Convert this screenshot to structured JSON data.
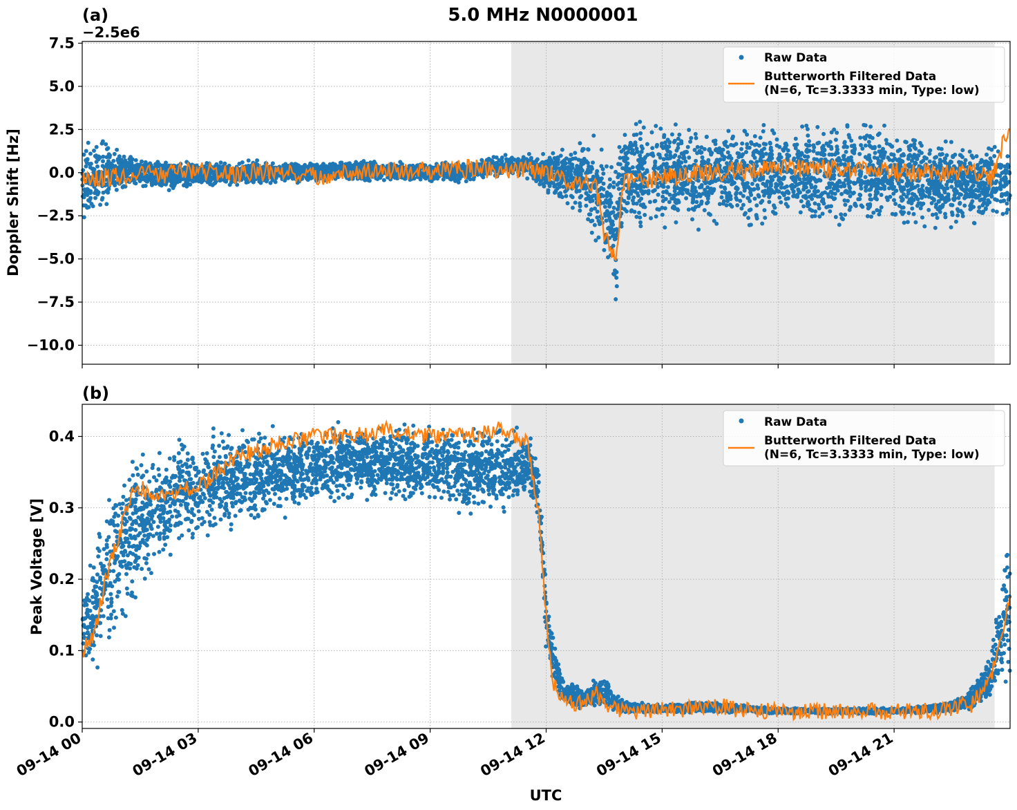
{
  "figure": {
    "title": "5.0 MHz N0000001",
    "xlabel": "UTC",
    "legend": {
      "raw_label": "Raw Data",
      "filtered_label_line1": "Butterworth Filtered Data",
      "filtered_label_line2": "(N=6, Tc=3.3333 min, Type: low)"
    },
    "colors": {
      "raw": "#1f77b4",
      "filtered": "#ff7f0e",
      "shade": "#e8e8e8",
      "grid": "#b0b0b0"
    },
    "x_tick_labels": [
      "09-14 00",
      "09-14 03",
      "09-14 06",
      "09-14 09",
      "09-14 12",
      "09-14 15",
      "09-14 18",
      "09-14 21"
    ]
  },
  "chart_data": [
    {
      "type": "scatter",
      "panel_label": "(a)",
      "ylabel": "Doppler Shift [Hz]",
      "offset_text": "−2.5e6",
      "x_unit": "hours since 09-14 00 UTC",
      "xlim": [
        0,
        24
      ],
      "ylim": [
        -11.1,
        7.6
      ],
      "yticks": [
        7.5,
        5.0,
        2.5,
        0.0,
        -2.5,
        -5.0,
        -7.5,
        -10.0
      ],
      "ytick_labels": [
        "7.5",
        "5.0",
        "2.5",
        "0.0",
        "−2.5",
        "−5.0",
        "−7.5",
        "−10.0"
      ],
      "grid": true,
      "legend_position": "upper right",
      "shaded_region": [
        11.1,
        23.6
      ],
      "series": [
        {
          "name": "Raw Data",
          "kind": "band",
          "x": [
            0,
            0.5,
            1,
            1.5,
            2,
            3,
            4,
            5,
            6,
            7,
            8,
            9,
            10,
            11,
            11.5,
            12,
            12.5,
            13,
            13.3,
            13.6,
            13.8,
            14,
            14.3,
            15,
            16,
            17,
            18,
            19,
            20,
            21,
            22,
            23,
            24
          ],
          "y_high": [
            2.6,
            2.0,
            1.5,
            0.9,
            0.9,
            0.8,
            0.8,
            0.8,
            0.8,
            0.8,
            0.7,
            0.7,
            0.8,
            1.2,
            1.2,
            1.4,
            2.0,
            2.5,
            2.5,
            2.0,
            1.5,
            3.0,
            3.5,
            3.2,
            3.3,
            3.3,
            3.3,
            3.4,
            3.4,
            3.3,
            2.6,
            2.2,
            1.6
          ],
          "y_low": [
            -3.2,
            -2.4,
            -1.4,
            -0.9,
            -1.2,
            -1.0,
            -0.8,
            -0.7,
            -0.7,
            -0.6,
            -0.5,
            -0.6,
            -0.6,
            -0.3,
            -0.5,
            -1.3,
            -2.5,
            -3.2,
            -4.8,
            -6.5,
            -8.5,
            -3.0,
            -4.0,
            -3.5,
            -3.7,
            -3.7,
            -3.6,
            -3.7,
            -3.6,
            -3.7,
            -3.7,
            -3.4,
            -3.0
          ]
        },
        {
          "name": "Butterworth Filtered Data (N=6, Tc=3.3333 min, Type: low)",
          "kind": "line",
          "x": [
            0,
            1,
            2,
            3,
            4,
            5,
            6,
            7,
            8,
            9,
            10,
            11,
            12,
            12.5,
            13,
            13.3,
            13.5,
            13.7,
            13.8,
            14,
            14.5,
            15,
            16,
            17,
            18,
            19,
            20,
            21,
            22,
            23,
            23.5,
            24
          ],
          "y": [
            -0.3,
            -0.2,
            -0.1,
            0.1,
            -0.1,
            0.1,
            -0.2,
            0.0,
            0.1,
            0.1,
            0.2,
            0.2,
            0.1,
            -0.4,
            -0.6,
            -0.9,
            -3.5,
            -4.5,
            -5.5,
            -0.5,
            -0.6,
            -0.3,
            0.0,
            0.1,
            0.3,
            0.2,
            0.3,
            0.0,
            0.0,
            0.0,
            -0.4,
            2.8
          ],
          "noise": 0.55
        }
      ]
    },
    {
      "type": "scatter",
      "panel_label": "(b)",
      "ylabel": "Peak Voltage [V]",
      "x_unit": "hours since 09-14 00 UTC",
      "xlim": [
        0,
        24
      ],
      "ylim": [
        -0.009,
        0.445
      ],
      "yticks": [
        0.4,
        0.3,
        0.2,
        0.1,
        0.0
      ],
      "ytick_labels": [
        "0.4",
        "0.3",
        "0.2",
        "0.1",
        "0.0"
      ],
      "grid": true,
      "legend_position": "upper right",
      "shaded_region": [
        11.1,
        23.6
      ],
      "series": [
        {
          "name": "Raw Data",
          "kind": "band",
          "x": [
            0,
            0.3,
            0.6,
            1,
            1.5,
            2,
            3,
            4,
            5,
            6,
            7,
            8,
            9,
            10,
            11,
            11.5,
            11.8,
            12,
            12.2,
            12.5,
            13,
            13.5,
            14,
            15,
            16,
            17,
            18,
            19,
            20,
            21,
            22,
            22.5,
            23,
            23.5,
            24
          ],
          "y_high": [
            0.19,
            0.25,
            0.32,
            0.38,
            0.4,
            0.4,
            0.42,
            0.42,
            0.425,
            0.425,
            0.425,
            0.425,
            0.425,
            0.425,
            0.42,
            0.42,
            0.38,
            0.2,
            0.12,
            0.06,
            0.05,
            0.07,
            0.03,
            0.025,
            0.03,
            0.025,
            0.02,
            0.02,
            0.02,
            0.02,
            0.025,
            0.03,
            0.05,
            0.1,
            0.33
          ],
          "y_low": [
            0.06,
            0.06,
            0.08,
            0.12,
            0.17,
            0.2,
            0.24,
            0.26,
            0.28,
            0.29,
            0.3,
            0.3,
            0.29,
            0.28,
            0.28,
            0.3,
            0.28,
            0.08,
            0.04,
            0.02,
            0.015,
            0.015,
            0.012,
            0.012,
            0.012,
            0.012,
            0.011,
            0.011,
            0.011,
            0.011,
            0.012,
            0.012,
            0.015,
            0.02,
            0.03
          ]
        },
        {
          "name": "Butterworth Filtered Data (N=6, Tc=3.3333 min, Type: low)",
          "kind": "line",
          "x": [
            0,
            0.3,
            0.6,
            1,
            1.3,
            2,
            3,
            4,
            5,
            6,
            7,
            8,
            9,
            10,
            10.8,
            11.5,
            11.8,
            12,
            12.2,
            12.5,
            13,
            13.3,
            13.6,
            14,
            15,
            16,
            16.5,
            17,
            18,
            19,
            20,
            21,
            22,
            23,
            23.5,
            24
          ],
          "y": [
            0.1,
            0.12,
            0.2,
            0.27,
            0.33,
            0.32,
            0.33,
            0.37,
            0.39,
            0.4,
            0.4,
            0.41,
            0.4,
            0.4,
            0.41,
            0.39,
            0.3,
            0.15,
            0.05,
            0.03,
            0.025,
            0.04,
            0.02,
            0.015,
            0.016,
            0.02,
            0.022,
            0.016,
            0.015,
            0.015,
            0.015,
            0.015,
            0.015,
            0.025,
            0.06,
            0.17
          ],
          "noise": 0.012
        }
      ]
    }
  ]
}
